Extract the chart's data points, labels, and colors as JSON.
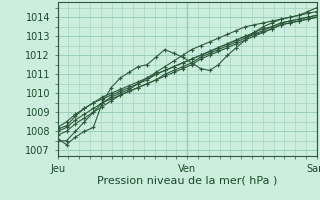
{
  "bg_color": "#cceedd",
  "plot_bg_color": "#cceedd",
  "grid_color": "#99ccbb",
  "line_color": "#2d5a3d",
  "marker_color": "#2d5a3d",
  "ylabel_ticks": [
    1007,
    1008,
    1009,
    1010,
    1011,
    1012,
    1013,
    1014
  ],
  "ylim": [
    1006.7,
    1014.8
  ],
  "xlim": [
    0,
    48
  ],
  "xlabel": "Pression niveau de la mer( hPa )",
  "xlabel_fontsize": 8,
  "xtick_labels": [
    "Jeu",
    "Ven",
    "Sam"
  ],
  "xtick_positions": [
    0,
    24,
    48
  ],
  "series": [
    [
      1007.6,
      1007.3,
      1007.7,
      1008.0,
      1008.2,
      1009.5,
      1010.3,
      1010.8,
      1011.1,
      1011.4,
      1011.5,
      1011.9,
      1012.3,
      1012.1,
      1011.9,
      1011.6,
      1011.3,
      1011.2,
      1011.5,
      1012.0,
      1012.4,
      1012.8,
      1013.2,
      1013.5,
      1013.7,
      1013.9,
      1014.0,
      1014.1,
      1014.3,
      1014.5
    ],
    [
      1007.5,
      1007.5,
      1008.0,
      1008.5,
      1009.0,
      1009.5,
      1009.8,
      1010.0,
      1010.2,
      1010.5,
      1010.8,
      1011.1,
      1011.4,
      1011.7,
      1012.0,
      1012.3,
      1012.5,
      1012.7,
      1012.9,
      1013.1,
      1013.3,
      1013.5,
      1013.6,
      1013.7,
      1013.8,
      1013.9,
      1014.0,
      1014.1,
      1014.2,
      1014.3
    ],
    [
      1008.1,
      1008.3,
      1008.8,
      1009.2,
      1009.5,
      1009.8,
      1010.0,
      1010.2,
      1010.4,
      1010.6,
      1010.8,
      1011.0,
      1011.2,
      1011.4,
      1011.6,
      1011.8,
      1012.0,
      1012.2,
      1012.4,
      1012.6,
      1012.8,
      1013.0,
      1013.2,
      1013.4,
      1013.5,
      1013.7,
      1013.8,
      1013.9,
      1014.0,
      1014.1
    ],
    [
      1007.8,
      1008.0,
      1008.4,
      1008.7,
      1009.0,
      1009.3,
      1009.6,
      1009.9,
      1010.1,
      1010.3,
      1010.5,
      1010.7,
      1010.9,
      1011.1,
      1011.3,
      1011.5,
      1011.8,
      1012.0,
      1012.2,
      1012.4,
      1012.6,
      1012.8,
      1013.0,
      1013.2,
      1013.4,
      1013.6,
      1013.7,
      1013.8,
      1013.9,
      1014.0
    ],
    [
      1008.0,
      1008.2,
      1008.6,
      1008.9,
      1009.2,
      1009.5,
      1009.7,
      1009.9,
      1010.1,
      1010.3,
      1010.5,
      1010.7,
      1011.0,
      1011.2,
      1011.4,
      1011.6,
      1011.9,
      1012.1,
      1012.3,
      1012.5,
      1012.7,
      1012.9,
      1013.1,
      1013.3,
      1013.5,
      1013.7,
      1013.8,
      1013.9,
      1014.0,
      1014.1
    ],
    [
      1008.2,
      1008.5,
      1008.9,
      1009.2,
      1009.5,
      1009.7,
      1009.9,
      1010.1,
      1010.3,
      1010.5,
      1010.7,
      1011.0,
      1011.2,
      1011.4,
      1011.6,
      1011.8,
      1012.0,
      1012.2,
      1012.4,
      1012.6,
      1012.8,
      1013.0,
      1013.1,
      1013.2,
      1013.4,
      1013.6,
      1013.7,
      1013.8,
      1013.9,
      1014.0
    ]
  ]
}
